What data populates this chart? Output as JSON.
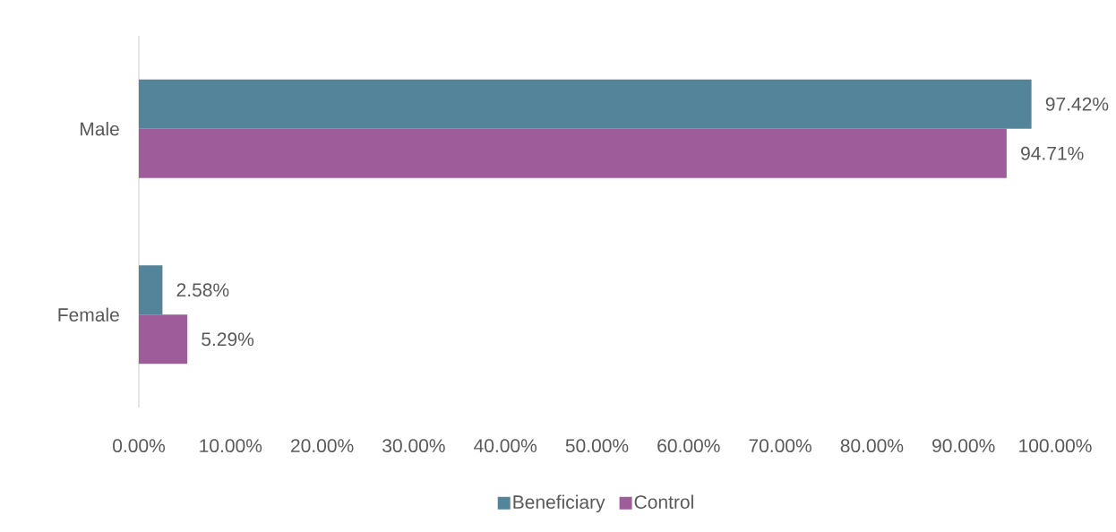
{
  "chart_data": {
    "type": "bar",
    "orientation": "horizontal",
    "categories": [
      "Male",
      "Female"
    ],
    "series": [
      {
        "name": "Beneficiary",
        "color": "#53849a",
        "values": [
          97.42,
          2.58
        ],
        "value_labels": [
          "97.42%",
          "2.58%"
        ]
      },
      {
        "name": "Control",
        "color": "#9e5d9a",
        "values": [
          94.71,
          5.29
        ],
        "value_labels": [
          "94.71%",
          "5.29%"
        ]
      }
    ],
    "xlim": [
      0,
      100
    ],
    "xticks": [
      {
        "value": 0,
        "label": "0.00%"
      },
      {
        "value": 10,
        "label": "10.00%"
      },
      {
        "value": 20,
        "label": "20.00%"
      },
      {
        "value": 30,
        "label": "30.00%"
      },
      {
        "value": 40,
        "label": "40.00%"
      },
      {
        "value": 50,
        "label": "50.00%"
      },
      {
        "value": 60,
        "label": "60.00%"
      },
      {
        "value": 70,
        "label": "70.00%"
      },
      {
        "value": 80,
        "label": "80.00%"
      },
      {
        "value": 90,
        "label": "90.00%"
      },
      {
        "value": 100,
        "label": "100.00%"
      }
    ],
    "grid": false,
    "legend": "bottom"
  }
}
